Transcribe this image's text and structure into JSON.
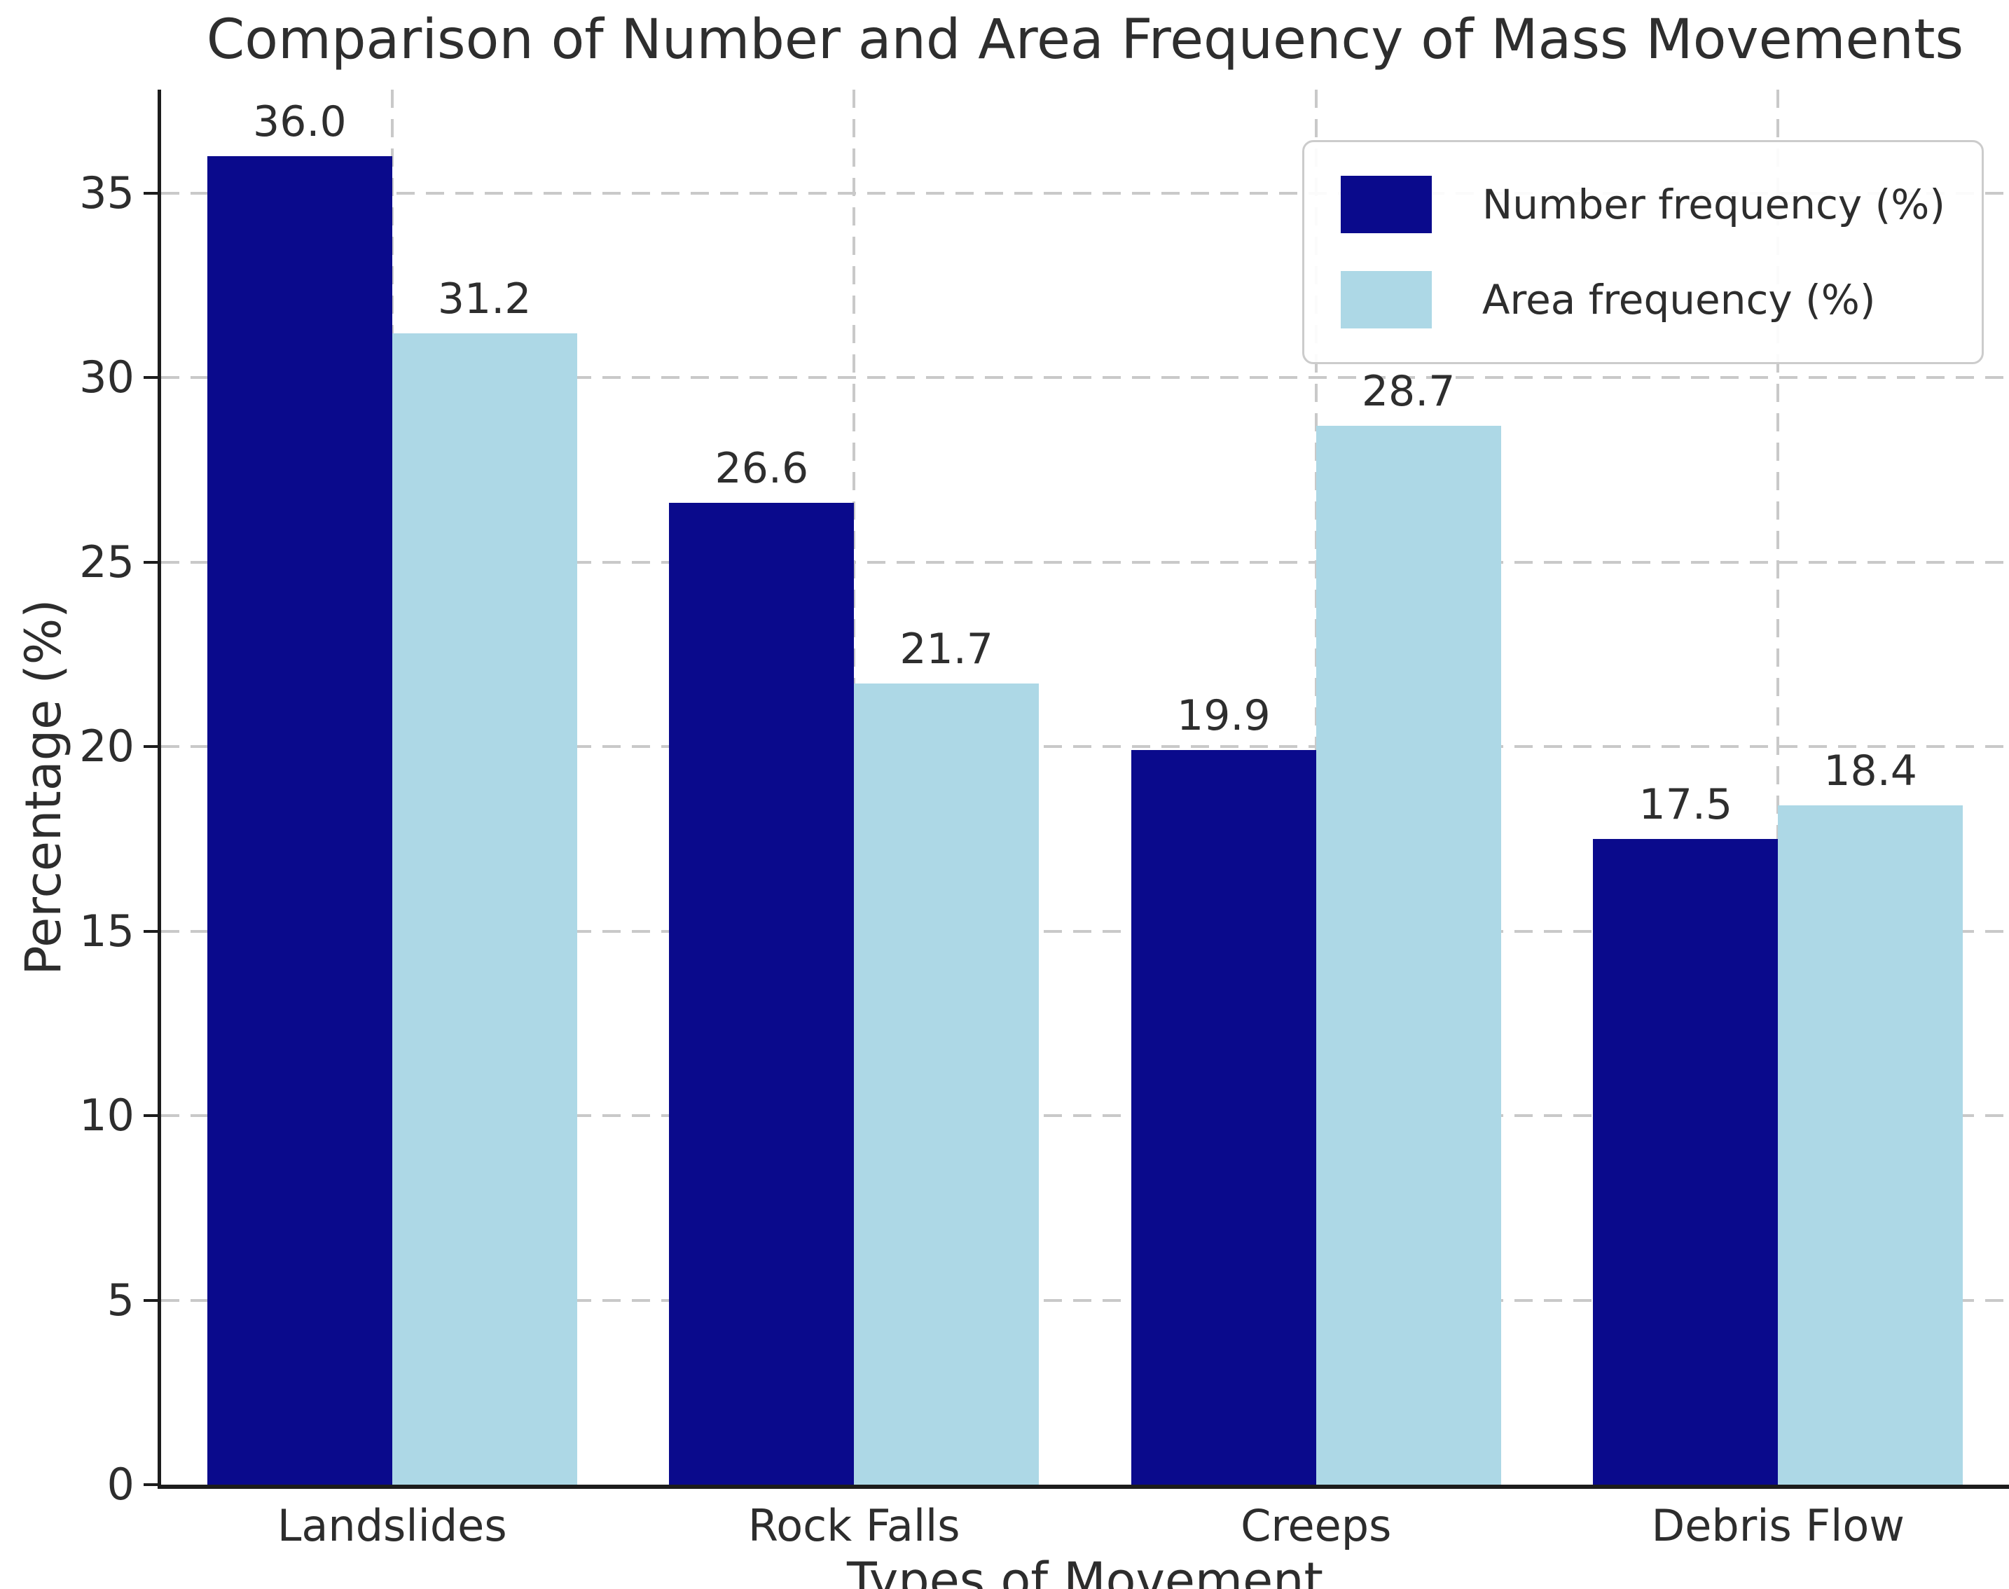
{
  "chart_data": {
    "type": "bar",
    "title": "Comparison of Number and Area Frequency of Mass Movements",
    "xlabel": "Types of Movement",
    "ylabel": "Percentage (%)",
    "categories": [
      "Landslides",
      "Rock Falls",
      "Creeps",
      "Debris Flow"
    ],
    "series": [
      {
        "name": "Number frequency (%)",
        "color": "#0a0a8c",
        "values": [
          36.0,
          26.6,
          19.9,
          17.5
        ]
      },
      {
        "name": "Area frequency (%)",
        "color": "#add8e6",
        "values": [
          31.2,
          21.7,
          28.7,
          18.4
        ]
      }
    ],
    "yticks": [
      0,
      5,
      10,
      15,
      20,
      25,
      30,
      35
    ],
    "ylim": [
      0,
      37.8
    ],
    "value_label_decimals": 1,
    "grid": "dashed horizontal and vertical gridlines",
    "legend_position": "upper right",
    "text_color": "#2d2d2d",
    "grid_color": "#c9c9c9",
    "spine_color": "#1c1c1c",
    "background_color": "#ffffff"
  }
}
